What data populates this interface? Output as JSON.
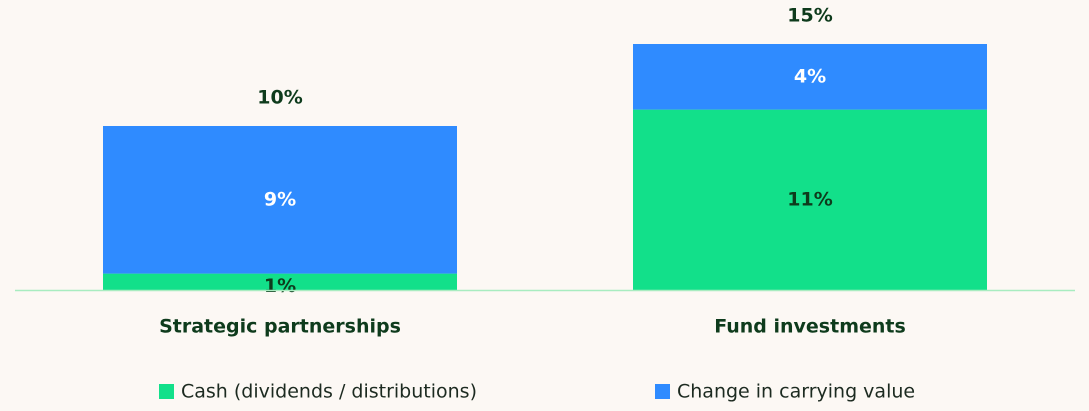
{
  "chart_data": {
    "type": "stacked_bar",
    "categories": [
      "Strategic partnerships",
      "Fund investments"
    ],
    "series": [
      {
        "name": "Cash (dividends / distributions)",
        "color": "#12e08a",
        "values": [
          1,
          11
        ],
        "value_labels": [
          "1%",
          "11%"
        ]
      },
      {
        "name": "Change in carrying value",
        "color": "#2f8bff",
        "values": [
          9,
          4
        ],
        "value_labels": [
          "9%",
          "4%"
        ]
      }
    ],
    "totals": [
      10,
      15
    ],
    "total_labels": [
      "10%",
      "15%"
    ],
    "ylim": [
      0,
      15
    ]
  }
}
